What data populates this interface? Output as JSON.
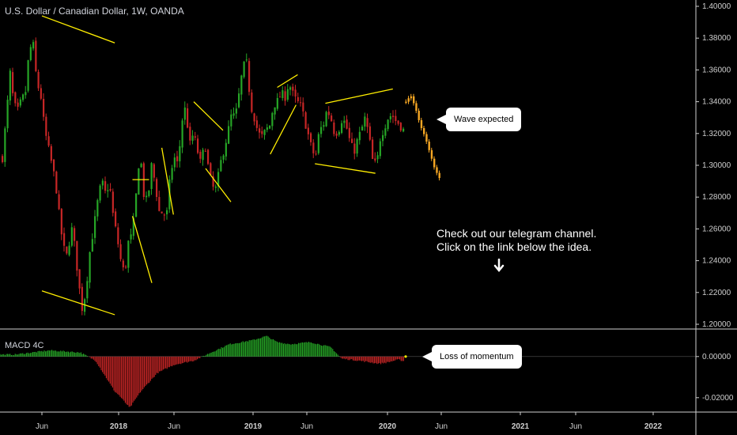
{
  "chart_data": {
    "type": "candlestick",
    "title": "U.S. Dollar / Canadian Dollar, 1W, OANDA",
    "price_axis": {
      "ticks": [
        "1.40000",
        "1.38000",
        "1.36000",
        "1.34000",
        "1.32000",
        "1.30000",
        "1.28000",
        "1.26000",
        "1.24000",
        "1.22000",
        "1.20000"
      ],
      "ylim": [
        1.2,
        1.4
      ]
    },
    "time_axis": {
      "ticks": [
        "Jun",
        "2018",
        "Jun",
        "2019",
        "Jun",
        "2020",
        "Jun",
        "2021",
        "Jun",
        "2022"
      ]
    },
    "indicator": {
      "name": "MACD 4C",
      "ticks": [
        "0.00000",
        "-0.02000"
      ],
      "ylim": [
        -0.027,
        0.013
      ]
    },
    "price_path": [
      [
        1.305,
        1.33
      ],
      [
        1.358,
        1.338
      ],
      [
        1.334,
        1.341
      ],
      [
        1.345,
        1.372
      ],
      [
        1.377,
        1.352
      ],
      [
        1.345,
        1.323
      ],
      [
        1.311,
        1.3
      ],
      [
        1.288,
        1.265
      ],
      [
        1.248,
        1.242
      ],
      [
        1.262,
        1.248
      ],
      [
        1.225,
        1.208
      ],
      [
        1.225,
        1.248
      ],
      [
        1.262,
        1.278
      ],
      [
        1.29,
        1.282
      ],
      [
        1.289,
        1.268
      ],
      [
        1.255,
        1.24
      ],
      [
        1.231,
        1.252
      ],
      [
        1.256,
        1.281
      ],
      [
        1.31,
        1.282
      ],
      [
        1.276,
        1.3
      ],
      [
        1.289,
        1.271
      ],
      [
        1.27,
        1.268
      ],
      [
        1.295,
        1.305
      ],
      [
        1.3,
        1.328
      ],
      [
        1.337,
        1.312
      ],
      [
        1.32,
        1.31
      ],
      [
        1.3,
        1.315
      ],
      [
        1.297,
        1.286
      ],
      [
        1.285,
        1.3
      ],
      [
        1.31,
        1.32
      ],
      [
        1.332,
        1.33
      ],
      [
        1.345,
        1.362
      ],
      [
        1.364,
        1.338
      ],
      [
        1.33,
        1.32
      ],
      [
        1.318,
        1.322
      ],
      [
        1.325,
        1.338
      ],
      [
        1.34,
        1.345
      ],
      [
        1.343,
        1.352
      ],
      [
        1.345,
        1.34
      ],
      [
        1.338,
        1.33
      ],
      [
        1.32,
        1.31
      ],
      [
        1.305,
        1.322
      ],
      [
        1.325,
        1.335
      ],
      [
        1.33,
        1.32
      ],
      [
        1.322,
        1.33
      ],
      [
        1.325,
        1.315
      ],
      [
        1.308,
        1.316
      ],
      [
        1.322,
        1.33
      ],
      [
        1.318,
        1.302
      ],
      [
        1.3,
        1.318
      ],
      [
        1.324,
        1.33
      ],
      [
        1.332,
        1.328
      ],
      [
        1.326,
        1.322
      ]
    ],
    "projection": [
      [
        1.34,
        1.344
      ],
      [
        1.336,
        1.325
      ],
      [
        1.318,
        1.308
      ],
      [
        1.298,
        1.292
      ]
    ],
    "price_lines": [
      [
        {
          "t": 0.0,
          "p": 1.394
        },
        {
          "t": 0.95,
          "p": 1.377
        }
      ],
      [
        {
          "t": 0.0,
          "p": 1.221
        },
        {
          "t": 0.95,
          "p": 1.206
        }
      ],
      [
        {
          "t": 1.25,
          "p": 1.291
        },
        {
          "t": 1.55,
          "p": 1.291
        }
      ],
      [
        {
          "t": 1.25,
          "p": 1.268
        },
        {
          "t": 1.6,
          "p": 1.226
        }
      ],
      [
        {
          "t": 1.78,
          "p": 1.311
        },
        {
          "t": 1.99,
          "p": 1.269
        }
      ],
      [
        {
          "t": 2.25,
          "p": 1.34
        },
        {
          "t": 2.62,
          "p": 1.322
        }
      ],
      [
        {
          "t": 2.4,
          "p": 1.298
        },
        {
          "t": 2.72,
          "p": 1.277
        }
      ],
      [
        {
          "t": 3.32,
          "p": 1.307
        },
        {
          "t": 3.8,
          "p": 1.338
        }
      ],
      [
        {
          "t": 3.45,
          "p": 1.349
        },
        {
          "t": 3.83,
          "p": 1.357
        }
      ],
      [
        {
          "t": 4.1,
          "p": 1.301
        },
        {
          "t": 4.85,
          "p": 1.295
        }
      ],
      [
        {
          "t": 4.23,
          "p": 1.339
        },
        {
          "t": 5.1,
          "p": 1.348
        }
      ]
    ],
    "macd_profile": [
      [
        0.0,
        0.001
      ],
      [
        0.45,
        0.003
      ],
      [
        0.85,
        0.002
      ],
      [
        1.05,
        -0.002
      ],
      [
        1.3,
        -0.017
      ],
      [
        1.55,
        -0.025
      ],
      [
        1.75,
        -0.017
      ],
      [
        2.05,
        -0.008
      ],
      [
        2.35,
        -0.004
      ],
      [
        2.6,
        -0.002
      ],
      [
        2.82,
        0.002
      ],
      [
        3.05,
        0.006
      ],
      [
        3.35,
        0.008
      ],
      [
        3.6,
        0.01
      ],
      [
        3.8,
        0.007
      ],
      [
        4.05,
        0.006
      ],
      [
        4.4,
        0.007
      ],
      [
        4.65,
        0.0045
      ],
      [
        4.78,
        -0.001
      ],
      [
        5.0,
        -0.002
      ],
      [
        5.25,
        -0.0035
      ],
      [
        5.55,
        -0.0015
      ],
      [
        5.85,
        -0.0035
      ],
      [
        6.0,
        -0.002
      ],
      [
        6.15,
        -0.0005
      ]
    ],
    "annotations": {
      "wave_expected": "Wave expected",
      "loss_of_momentum": "Loss of momentum",
      "telegram_line1": "Check out our telegram channel.",
      "telegram_line2": "Click on the link below the idea."
    },
    "colors": {
      "bull": "#26a526",
      "bear": "#c72626",
      "projection": "#f5a623",
      "pattern_lines": "#ffee00",
      "text": "#d1d4dc",
      "axis": "#cfcfcf"
    }
  }
}
